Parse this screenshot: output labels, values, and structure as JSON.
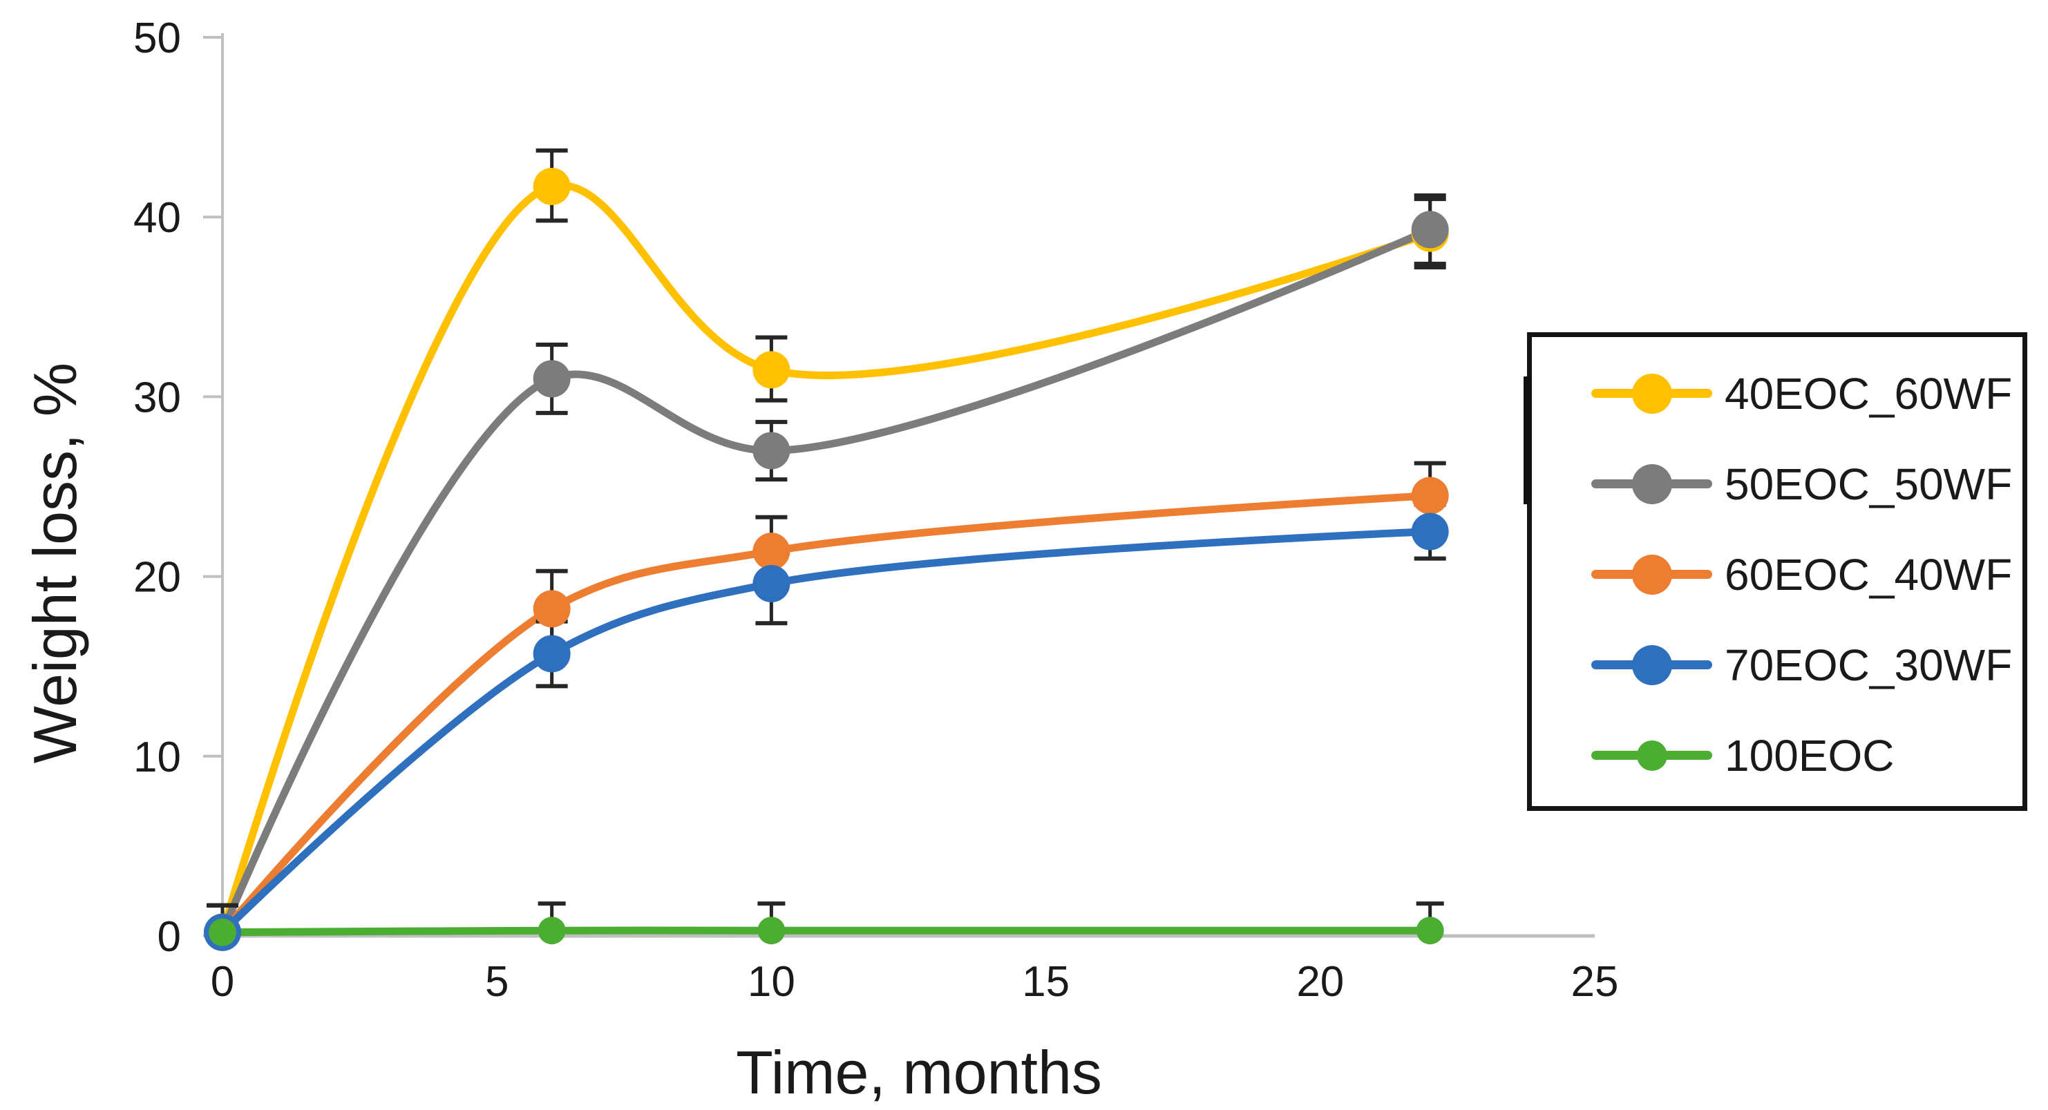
{
  "figure": {
    "kind": "scientific line chart with error bars",
    "background": "#ffffff",
    "text_color": "#1a1a1a",
    "axis_line_color": "#bfbfbf",
    "error_bar_color": "#262626"
  },
  "chart_data": {
    "type": "line",
    "line_style": "smooth",
    "marker": "circle",
    "error_bars": true,
    "grid": false,
    "legend_position": "right",
    "xlabel": "Time, months",
    "ylabel": "Weight loss, %",
    "xlim": [
      0,
      25
    ],
    "ylim": [
      0,
      50
    ],
    "x_ticks": [
      0,
      5,
      10,
      15,
      20,
      25
    ],
    "y_ticks": [
      0,
      10,
      20,
      30,
      40,
      50
    ],
    "x": [
      0,
      6,
      10,
      22
    ],
    "series": [
      {
        "name": "40EOC_60WF",
        "color": "#FFC000",
        "values": [
          0.2,
          41.7,
          31.5,
          39.1
        ],
        "err_plus": [
          1.5,
          2.0,
          1.8,
          1.9
        ],
        "err_minus": [
          0,
          1.9,
          1.7,
          1.9
        ]
      },
      {
        "name": "50EOC_50WF",
        "color": "#7C7C7C",
        "values": [
          0.2,
          31.0,
          27.0,
          39.3
        ],
        "err_plus": [
          1.5,
          1.9,
          1.6,
          1.9
        ],
        "err_minus": [
          0,
          1.9,
          1.6,
          1.9
        ]
      },
      {
        "name": "60EOC_40WF",
        "color": "#ED7D31",
        "values": [
          0.2,
          18.2,
          21.4,
          24.5
        ],
        "err_plus": [
          1.5,
          2.1,
          1.9,
          1.8
        ],
        "err_minus": [
          0,
          2.1,
          1.9,
          1.8
        ]
      },
      {
        "name": "70EOC_30WF",
        "color": "#2E6FBE",
        "values": [
          0.2,
          15.7,
          19.6,
          22.5
        ],
        "err_plus": [
          1.5,
          1.8,
          2.0,
          1.5
        ],
        "err_minus": [
          0,
          1.8,
          2.2,
          1.5
        ]
      },
      {
        "name": "100EOC",
        "color": "#4CAD33",
        "values": [
          0.2,
          0.3,
          0.3,
          0.3
        ],
        "err_plus": [
          0,
          1.5,
          1.5,
          1.5
        ],
        "err_minus": [
          0,
          0,
          0,
          0
        ]
      }
    ]
  }
}
